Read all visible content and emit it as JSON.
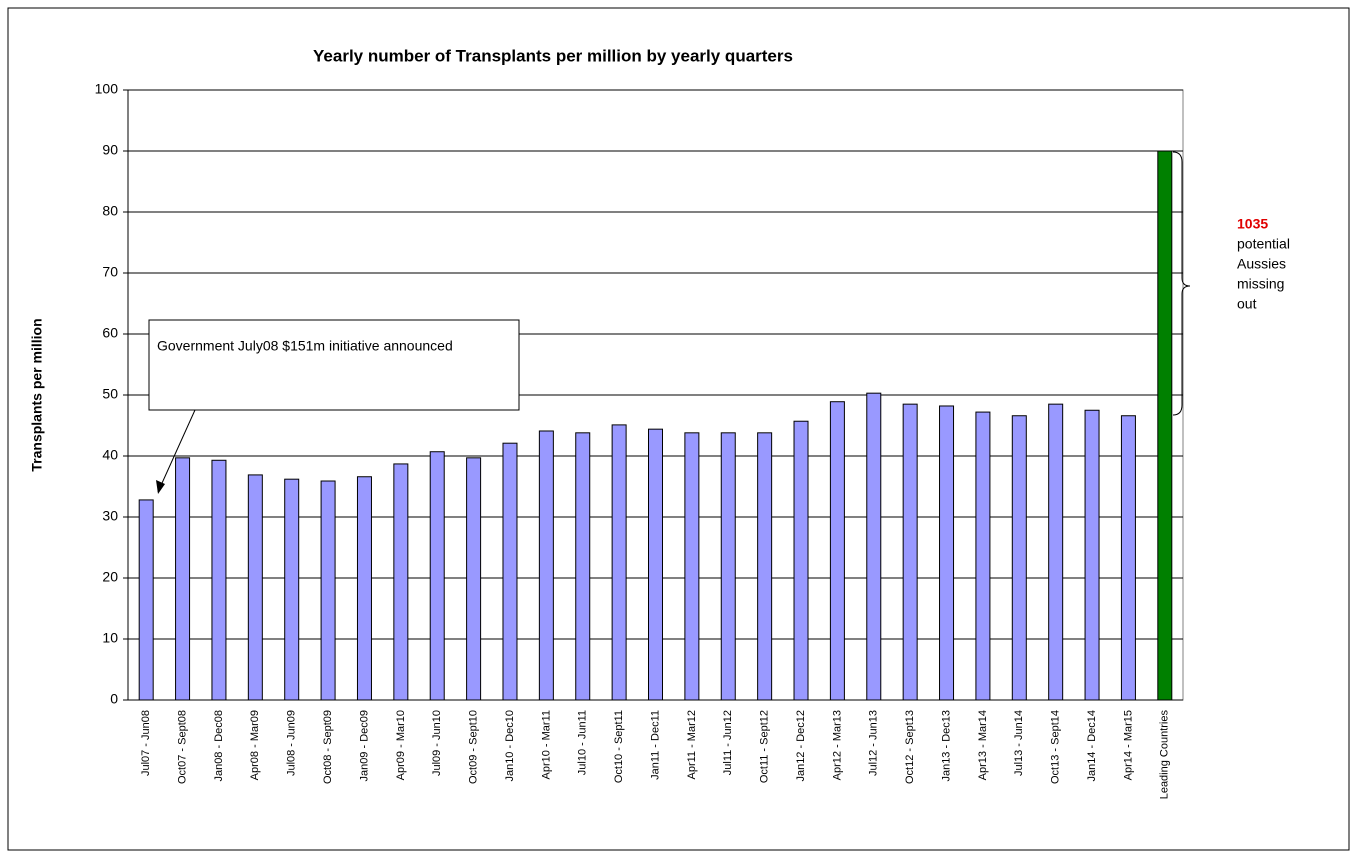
{
  "chart_data": {
    "type": "bar",
    "title": "Yearly number of Transplants per million by yearly quarters",
    "y_label": "Transplants per million",
    "categories": [
      "Jul07 - Jun08",
      "Oct07 - Sept08",
      "Jan08 - Dec08",
      "Apr08 - Mar09",
      "Jul08 - Jun09",
      "Oct08 - Sept09",
      "Jan09 - Dec09",
      "Apr09 - Mar10",
      "Jul09 - Jun10",
      "Oct09 - Sept10",
      "Jan10 - Dec10",
      "Apr10 - Mar11",
      "Jul10 - Jun11",
      "Oct10 - Sept11",
      "Jan11 - Dec11",
      "Apr11 - Mar12",
      "Jul11 - Jun12",
      "Oct11 - Sept12",
      "Jan12 - Dec12",
      "Apr12 - Mar13",
      "Jul12 - Jun13",
      "Oct12 - Sept13",
      "Jan13 - Dec13",
      "Apr13 - Mar14",
      "Jul13 - Jun14",
      "Oct13 - Sept14",
      "Jan14 - Dec14",
      "Apr14 - Mar15",
      "Leading Countries"
    ],
    "values": [
      32.8,
      39.7,
      39.3,
      36.9,
      36.2,
      35.9,
      36.6,
      38.7,
      40.7,
      39.7,
      42.1,
      44.1,
      43.8,
      45.1,
      44.4,
      43.8,
      43.8,
      43.8,
      45.7,
      48.9,
      50.3,
      48.5,
      48.2,
      47.2,
      46.6,
      48.5,
      47.5,
      46.6,
      90
    ],
    "colors": [
      "#9999ff",
      "#9999ff",
      "#9999ff",
      "#9999ff",
      "#9999ff",
      "#9999ff",
      "#9999ff",
      "#9999ff",
      "#9999ff",
      "#9999ff",
      "#9999ff",
      "#9999ff",
      "#9999ff",
      "#9999ff",
      "#9999ff",
      "#9999ff",
      "#9999ff",
      "#9999ff",
      "#9999ff",
      "#9999ff",
      "#9999ff",
      "#9999ff",
      "#9999ff",
      "#9999ff",
      "#9999ff",
      "#9999ff",
      "#9999ff",
      "#9999ff",
      "#008000"
    ],
    "ylim": [
      0,
      100
    ],
    "yticks": [
      0,
      10,
      20,
      30,
      40,
      50,
      60,
      70,
      80,
      90,
      100
    ],
    "grid": true,
    "annotations": [
      "Government July08 $151m initiative announced",
      "1035",
      "potential",
      "Aussies",
      "missing",
      "out"
    ]
  }
}
